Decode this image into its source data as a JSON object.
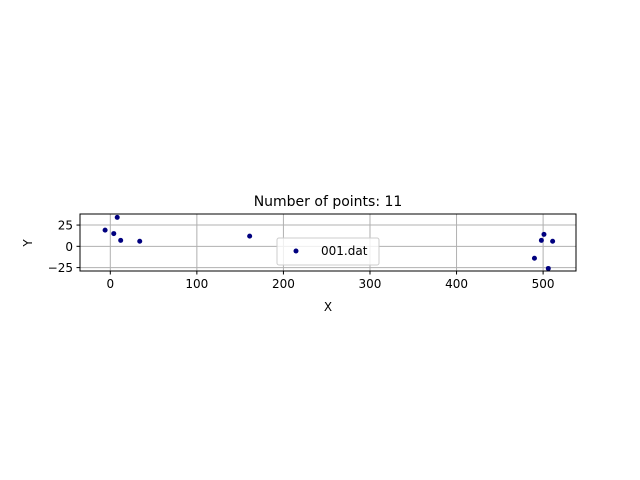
{
  "chart_data": {
    "type": "scatter",
    "title": "Number of points: 11",
    "xlabel": "X",
    "ylabel": "Y",
    "xlim": [
      -35,
      538
    ],
    "ylim": [
      -29,
      38
    ],
    "xticks": [
      0,
      100,
      200,
      300,
      400,
      500
    ],
    "yticks": [
      -25,
      0,
      25
    ],
    "xtick_labels": [
      "0",
      "100",
      "200",
      "300",
      "400",
      "500"
    ],
    "ytick_labels": [
      "−25",
      "0",
      "25"
    ],
    "grid": true,
    "legend_position": "lower center",
    "series": [
      {
        "name": "001.dat",
        "color": "#00007f",
        "points": [
          {
            "x": -6,
            "y": 19
          },
          {
            "x": 4,
            "y": 15
          },
          {
            "x": 8,
            "y": 34
          },
          {
            "x": 12,
            "y": 7
          },
          {
            "x": 34,
            "y": 6
          },
          {
            "x": 161,
            "y": 12
          },
          {
            "x": 490,
            "y": -14
          },
          {
            "x": 498,
            "y": 7
          },
          {
            "x": 501,
            "y": 14
          },
          {
            "x": 506,
            "y": -26
          },
          {
            "x": 511,
            "y": 6
          }
        ]
      }
    ]
  }
}
